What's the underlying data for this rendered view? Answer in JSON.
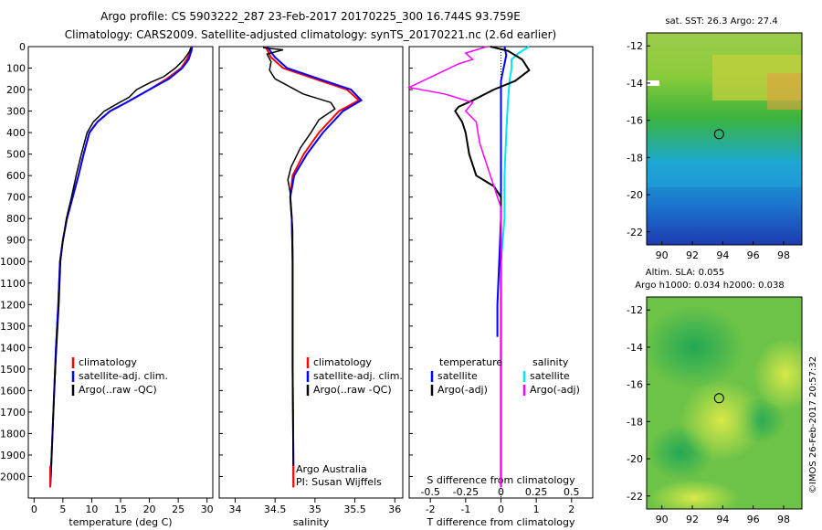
{
  "header": {
    "title_line1": "Argo profile: CS 5903222_287 23-Feb-2017 20170225_300 16.744S 93.759E",
    "title_line2": "Climatology: CARS2009. Satellite-adjusted climatology: synTS_20170221.nc (2.6d earlier)"
  },
  "footer": {
    "stamp": "©IMOS 26-Feb-2017 20:57:32"
  },
  "colors": {
    "climatology": "#ff0000",
    "satellite": "#0000ff",
    "argo": "#000000",
    "salinity_satellite": "#00e5ff",
    "salinity_argo": "#ff00ff"
  },
  "chart_data": [
    {
      "type": "line",
      "id": "temperature",
      "xlabel": "temperature (deg C)",
      "ylabel": "",
      "xlim": [
        -1,
        31
      ],
      "ylim": [
        2100,
        0
      ],
      "xticks": [
        "0",
        "5",
        "10",
        "15",
        "20",
        "25",
        "30"
      ],
      "yticks": [
        "0",
        "100",
        "200",
        "300",
        "400",
        "500",
        "600",
        "700",
        "800",
        "900",
        "1000",
        "1100",
        "1200",
        "1300",
        "1400",
        "1500",
        "1600",
        "1700",
        "1800",
        "1900",
        "2000"
      ],
      "legend": [
        "climatology",
        "satellite-adj. clim.",
        "Argo(..raw -QC)"
      ],
      "series": [
        {
          "name": "climatology",
          "color": "#ff0000",
          "points": [
            [
              27.3,
              0
            ],
            [
              27.2,
              20
            ],
            [
              26.5,
              60
            ],
            [
              25.5,
              100
            ],
            [
              23,
              150
            ],
            [
              20,
              200
            ],
            [
              16,
              260
            ],
            [
              13.2,
              300
            ],
            [
              11,
              350
            ],
            [
              9.6,
              400
            ],
            [
              8.6,
              500
            ],
            [
              7.7,
              600
            ],
            [
              6.7,
              700
            ],
            [
              5.7,
              800
            ],
            [
              5,
              900
            ],
            [
              4.5,
              1000
            ],
            [
              4.2,
              1200
            ],
            [
              3.8,
              1400
            ],
            [
              3.5,
              1600
            ],
            [
              3.2,
              1800
            ],
            [
              2.9,
              2000
            ],
            [
              2.8,
              2050
            ]
          ]
        },
        {
          "name": "satellite-adj. clim.",
          "color": "#0000ff",
          "points": [
            [
              27.4,
              0
            ],
            [
              27.3,
              20
            ],
            [
              26.8,
              60
            ],
            [
              25.7,
              100
            ],
            [
              23.4,
              150
            ],
            [
              20,
              200
            ],
            [
              16,
              260
            ],
            [
              13.2,
              300
            ],
            [
              11,
              350
            ],
            [
              9.6,
              400
            ],
            [
              8.6,
              500
            ],
            [
              7.7,
              600
            ],
            [
              6.7,
              700
            ],
            [
              5.7,
              800
            ],
            [
              5,
              900
            ],
            [
              4.5,
              1000
            ],
            [
              4.2,
              1200
            ],
            [
              3.8,
              1400
            ],
            [
              3.5,
              1600
            ],
            [
              3.2,
              1800
            ],
            [
              2.9,
              2000
            ],
            [
              2.8,
              2050
            ]
          ]
        },
        {
          "name": "Argo(..raw -QC)",
          "color": "#000000",
          "points": [
            [
              27.2,
              5
            ],
            [
              26.9,
              25
            ],
            [
              26,
              60
            ],
            [
              24.5,
              100
            ],
            [
              22.5,
              140
            ],
            [
              20.3,
              165
            ],
            [
              17.8,
              200
            ],
            [
              16.5,
              235
            ],
            [
              14.5,
              265
            ],
            [
              12.2,
              300
            ],
            [
              10.3,
              350
            ],
            [
              9.2,
              400
            ],
            [
              8.2,
              500
            ],
            [
              7.3,
              600
            ],
            [
              6.5,
              700
            ],
            [
              5.6,
              800
            ],
            [
              5,
              900
            ],
            [
              4.6,
              1000
            ],
            [
              4.3,
              1200
            ],
            [
              3.9,
              1400
            ],
            [
              3.5,
              1600
            ],
            [
              3.2,
              1800
            ],
            [
              2.9,
              2000
            ],
            [
              2.8,
              2030
            ]
          ]
        }
      ]
    },
    {
      "type": "line",
      "id": "salinity",
      "xlabel": "salinity",
      "xlim": [
        33.8,
        36.1
      ],
      "ylim": [
        2100,
        0
      ],
      "xticks": [
        "34",
        "34.5",
        "35",
        "35.5",
        "36"
      ],
      "legend": [
        "climatology",
        "satellite-adj. clim.",
        "Argo(..raw -QC)"
      ],
      "annotations": [
        "Argo Australia",
        "PI: Susan Wijffels"
      ],
      "series": [
        {
          "name": "climatology",
          "color": "#ff0000",
          "points": [
            [
              34.38,
              0
            ],
            [
              34.45,
              50
            ],
            [
              34.6,
              100
            ],
            [
              35.0,
              150
            ],
            [
              35.4,
              200
            ],
            [
              35.55,
              250
            ],
            [
              35.3,
              300
            ],
            [
              35.05,
              400
            ],
            [
              34.86,
              500
            ],
            [
              34.72,
              600
            ],
            [
              34.69,
              700
            ],
            [
              34.71,
              800
            ],
            [
              34.72,
              1000
            ],
            [
              34.72,
              1500
            ],
            [
              34.73,
              2000
            ],
            [
              34.73,
              2050
            ]
          ]
        },
        {
          "name": "satellite-adj. clim.",
          "color": "#0000ff",
          "points": [
            [
              34.4,
              0
            ],
            [
              34.5,
              50
            ],
            [
              34.65,
              100
            ],
            [
              35.05,
              150
            ],
            [
              35.45,
              200
            ],
            [
              35.58,
              250
            ],
            [
              35.35,
              300
            ],
            [
              35.1,
              400
            ],
            [
              34.9,
              500
            ],
            [
              34.74,
              600
            ],
            [
              34.69,
              700
            ],
            [
              34.71,
              800
            ],
            [
              34.72,
              1000
            ],
            [
              34.72,
              1500
            ],
            [
              34.73,
              1950
            ]
          ]
        },
        {
          "name": "Argo(..raw -QC)",
          "color": "#000000",
          "points": [
            [
              34.35,
              5
            ],
            [
              34.6,
              15
            ],
            [
              34.4,
              35
            ],
            [
              34.45,
              70
            ],
            [
              34.43,
              110
            ],
            [
              34.5,
              150
            ],
            [
              34.65,
              180
            ],
            [
              34.85,
              220
            ],
            [
              35.2,
              260
            ],
            [
              35.25,
              290
            ],
            [
              35.05,
              340
            ],
            [
              34.95,
              400
            ],
            [
              34.82,
              470
            ],
            [
              34.7,
              560
            ],
            [
              34.66,
              620
            ],
            [
              34.69,
              680
            ],
            [
              34.7,
              760
            ],
            [
              34.72,
              850
            ],
            [
              34.72,
              1000
            ],
            [
              34.72,
              1500
            ],
            [
              34.73,
              2050
            ]
          ]
        }
      ]
    },
    {
      "type": "line",
      "id": "difference",
      "xlabel": "T difference from climatology",
      "xlabel_top": "S difference from climatology",
      "xlim": [
        -2.6,
        2.6
      ],
      "ylim": [
        2100,
        0
      ],
      "xticks": [
        "-2",
        "-1",
        "0",
        "1",
        "2"
      ],
      "xticks_top": [
        "-0.5",
        "-0.25",
        "0",
        "0.25",
        "0.5"
      ],
      "legend_left_title": "temperature",
      "legend_right_title": "salinity",
      "legend": [
        "satellite",
        "Argo(-adj)",
        "satellite",
        "Argo(-adj)"
      ],
      "series": [
        {
          "name": "T satellite",
          "color": "#0000ff",
          "points": [
            [
              0.1,
              0
            ],
            [
              0.15,
              40
            ],
            [
              0.1,
              80
            ],
            [
              0.05,
              120
            ],
            [
              0,
              160
            ],
            [
              0,
              200
            ],
            [
              0,
              300
            ],
            [
              0,
              500
            ],
            [
              0,
              800
            ],
            [
              -0.05,
              1000
            ],
            [
              -0.1,
              1200
            ],
            [
              -0.1,
              1350
            ]
          ]
        },
        {
          "name": "S satellite",
          "color": "#00e5ff",
          "points": [
            [
              0.8,
              0
            ],
            [
              0.5,
              30
            ],
            [
              0.3,
              60
            ],
            [
              0.3,
              100
            ],
            [
              0.25,
              150
            ],
            [
              0.2,
              250
            ],
            [
              0.15,
              400
            ],
            [
              0.1,
              600
            ],
            [
              0.1,
              800
            ],
            [
              0,
              1000
            ],
            [
              0,
              1500
            ],
            [
              0,
              2050
            ]
          ]
        },
        {
          "name": "T Argo(-adj)",
          "color": "#000000",
          "points": [
            [
              -0.3,
              0
            ],
            [
              0.2,
              20
            ],
            [
              0.6,
              60
            ],
            [
              0.8,
              110
            ],
            [
              0.4,
              160
            ],
            [
              -0.2,
              200
            ],
            [
              -0.8,
              250
            ],
            [
              -1.2,
              280
            ],
            [
              -1.3,
              300
            ],
            [
              -1.1,
              350
            ],
            [
              -1.0,
              400
            ],
            [
              -0.9,
              500
            ],
            [
              -0.7,
              600
            ],
            [
              -0.2,
              650
            ],
            [
              0,
              700
            ],
            [
              0,
              1000
            ],
            [
              0,
              2050
            ]
          ]
        },
        {
          "name": "S Argo(-adj)",
          "color": "#ff00ff",
          "points": [
            [
              -0.4,
              0
            ],
            [
              -1.0,
              30
            ],
            [
              -0.8,
              60
            ],
            [
              -1.2,
              80
            ],
            [
              -2.6,
              190
            ],
            [
              -1.6,
              220
            ],
            [
              -0.8,
              260
            ],
            [
              -1.0,
              300
            ],
            [
              -0.7,
              350
            ],
            [
              -0.6,
              450
            ],
            [
              -0.4,
              550
            ],
            [
              -0.2,
              650
            ],
            [
              0,
              750
            ],
            [
              0,
              1000
            ],
            [
              0,
              2050
            ]
          ]
        }
      ]
    },
    {
      "type": "heatmap",
      "id": "sst-map",
      "title": "sat. SST: 26.3 Argo: 27.4",
      "xlim": [
        89,
        99.2
      ],
      "ylim": [
        -22.7,
        -11.3
      ],
      "xticks": [
        "90",
        "92",
        "94",
        "96",
        "98"
      ],
      "yticks": [
        "-12",
        "-14",
        "-16",
        "-18",
        "-20",
        "-22"
      ],
      "marker": [
        93.759,
        -16.744
      ]
    },
    {
      "type": "heatmap",
      "id": "sla-map",
      "title_line1": "Altim. SLA: 0.055",
      "title_line2": "Argo h1000: 0.034 h2000: 0.038",
      "xlim": [
        89,
        99.2
      ],
      "ylim": [
        -22.7,
        -11.3
      ],
      "xticks": [
        "90",
        "92",
        "94",
        "96",
        "98"
      ],
      "yticks": [
        "-12",
        "-14",
        "-16",
        "-18",
        "-20",
        "-22"
      ],
      "marker": [
        93.759,
        -16.744
      ]
    }
  ]
}
